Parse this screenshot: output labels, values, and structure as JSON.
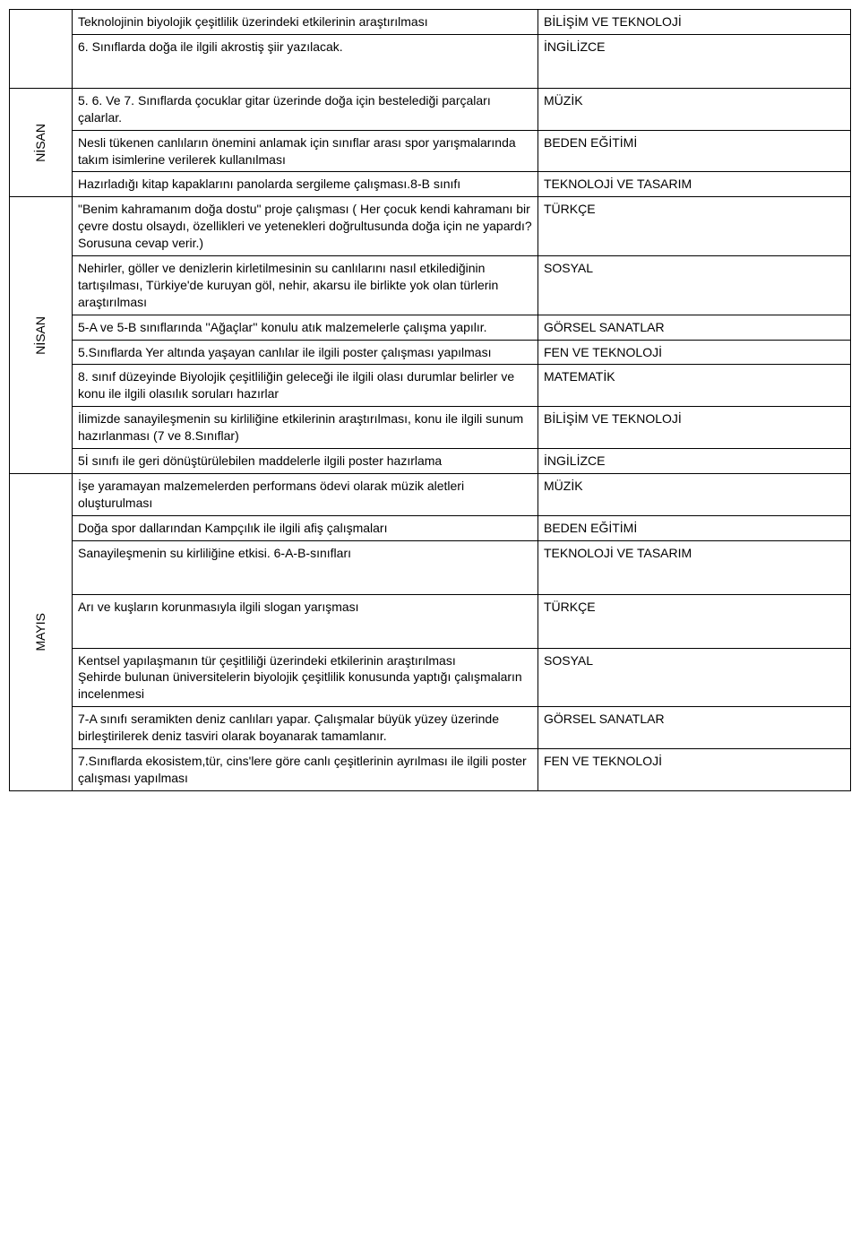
{
  "months": {
    "nisan1": "NİSAN",
    "nisan2": "NİSAN",
    "mayis": "MAYIS"
  },
  "rows": [
    {
      "activity": "Teknolojinin biyolojik çeşitlilik üzerindeki etkilerinin araştırılması",
      "subject": "BİLİŞİM VE TEKNOLOJİ"
    },
    {
      "activity": "6. Sınıflarda doğa ile ilgili akrostiş şiir yazılacak.",
      "subject": "İNGİLİZCE"
    },
    {
      "activity": "5. 6. Ve 7. Sınıflarda çocuklar gitar üzerinde doğa için bestelediği parçaları çalarlar.",
      "subject": "MÜZİK"
    },
    {
      "activity": "Nesli tükenen canlıların önemini anlamak için  sınıflar arası spor yarışmalarında takım  isimlerine verilerek kullanılması",
      "subject": "BEDEN EĞİTİMİ"
    },
    {
      "activity": "Hazırladığı kitap kapaklarını panolarda sergileme çalışması.8-B sınıfı",
      "subject": "TEKNOLOJİ VE TASARIM"
    },
    {
      "activity": "\"Benim kahramanım doğa dostu\" proje çalışması ( Her çocuk kendi kahramanı bir çevre dostu olsaydı, özellikleri ve yetenekleri doğrultusunda doğa için ne yapardı? Sorusuna cevap verir.)",
      "subject": "TÜRKÇE"
    },
    {
      "activity": "Nehirler, göller ve denizlerin kirletilmesinin su canlılarını nasıl etkilediğinin tartışılması, Türkiye'de kuruyan göl, nehir, akarsu ile birlikte yok olan türlerin araştırılması",
      "subject": "SOSYAL"
    },
    {
      "activity": "5-A ve 5-B sınıflarında ''Ağaçlar'' konulu atık malzemelerle çalışma yapılır.",
      "subject": "GÖRSEL SANATLAR"
    },
    {
      "activity": "5.Sınıflarda Yer altında yaşayan canlılar ile ilgili poster çalışması yapılması",
      "subject": "FEN VE TEKNOLOJİ"
    },
    {
      "activity": "8. sınıf düzeyinde Biyolojik çeşitliliğin geleceği ile ilgili olası durumlar belirler ve konu ile ilgili olasılık soruları hazırlar",
      "subject": "MATEMATİK"
    },
    {
      "activity": "İlimizde sanayileşmenin su kirliliğine etkilerinin araştırılması, konu ile ilgili sunum hazırlanması (7 ve 8.Sınıflar)",
      "subject": "BİLİŞİM VE TEKNOLOJİ"
    },
    {
      "activity": "5İ sınıfı ile geri dönüştürülebilen maddelerle ilgili poster hazırlama",
      "subject": "İNGİLİZCE"
    },
    {
      "activity": "İşe yaramayan malzemelerden performans ödevi olarak müzik aletleri oluşturulması",
      "subject": "MÜZİK"
    },
    {
      "activity": "Doğa spor  dallarından Kampçılık ile ilgili afiş çalışmaları",
      "subject": "BEDEN EĞİTİMİ"
    },
    {
      "activity": "Sanayileşmenin su kirliliğine etkisi. 6-A-B-sınıfları",
      "subject": "TEKNOLOJİ VE TASARIM"
    },
    {
      "activity": "Arı ve kuşların korunmasıyla ilgili slogan yarışması",
      "subject": "TÜRKÇE"
    },
    {
      "activity": "Kentsel yapılaşmanın tür çeşitliliği üzerindeki etkilerinin araştırılması\nŞehirde bulunan üniversitelerin biyolojik çeşitlilik konusunda yaptığı çalışmaların incelenmesi",
      "subject": "SOSYAL"
    },
    {
      "activity": "7-A sınıfı seramikten deniz canlıları yapar. Çalışmalar büyük yüzey üzerinde birleştirilerek deniz tasviri olarak boyanarak tamamlanır.",
      "subject": "GÖRSEL SANATLAR"
    },
    {
      "activity": "7.Sınıflarda ekosistem,tür, cins'lere göre canlı çeşitlerinin ayrılması ile ilgili poster çalışması yapılması",
      "subject": "FEN VE TEKNOLOJİ"
    }
  ]
}
